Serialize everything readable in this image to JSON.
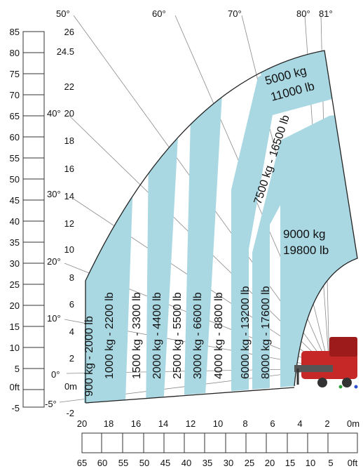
{
  "palette": {
    "zone_fill": "#a9d8e3",
    "line": "#222222",
    "ray": "#888888",
    "machine_red": "#c62828"
  },
  "units": {
    "right": "0m",
    "right_ft": "0ft"
  },
  "ft_scale": {
    "left_labels": [
      "85",
      "80",
      "75",
      "70",
      "65",
      "60",
      "55",
      "50",
      "45",
      "40",
      "35",
      "30",
      "25",
      "20",
      "15",
      "10",
      "5",
      "0ft",
      "-5"
    ],
    "bottom_labels": [
      "65",
      "60",
      "55",
      "50",
      "45",
      "40",
      "35",
      "30",
      "25",
      "20",
      "15",
      "10",
      "5",
      "0ft"
    ]
  },
  "m_scale": {
    "y_labels": [
      "26",
      "24.5",
      "22",
      "20",
      "18",
      "16",
      "14",
      "12",
      "10",
      "8",
      "6",
      "4",
      "2",
      "0m",
      "-2"
    ],
    "x_labels": [
      "20",
      "18",
      "16",
      "14",
      "12",
      "10",
      "8",
      "6",
      "4",
      "2",
      "0m"
    ]
  },
  "angles": [
    "50°",
    "60°",
    "70°",
    "80°",
    "81°",
    "40°",
    "30°",
    "20°",
    "10°",
    "0°",
    "-5°"
  ],
  "zones": [
    {
      "label": "900 kg - 2000 lb"
    },
    {
      "label": "1000 kg - 2200 lb"
    },
    {
      "label": "1500 kg - 3300 lb"
    },
    {
      "label": "2000 kg - 4400 lb"
    },
    {
      "label": "2500 kg - 5500 lb"
    },
    {
      "label": "3000 kg - 6600 lb"
    },
    {
      "label": "4000 kg - 8800 lb"
    },
    {
      "label": "6000 kg - 13200 lb"
    },
    {
      "label": "8000 kg - 17600 lb"
    },
    {
      "label": "7500 kg - 16500 lb"
    },
    {
      "label": "5000 kg",
      "label2": "11000 lb"
    },
    {
      "label": "9000 kg",
      "label2": "19800 lb"
    }
  ]
}
